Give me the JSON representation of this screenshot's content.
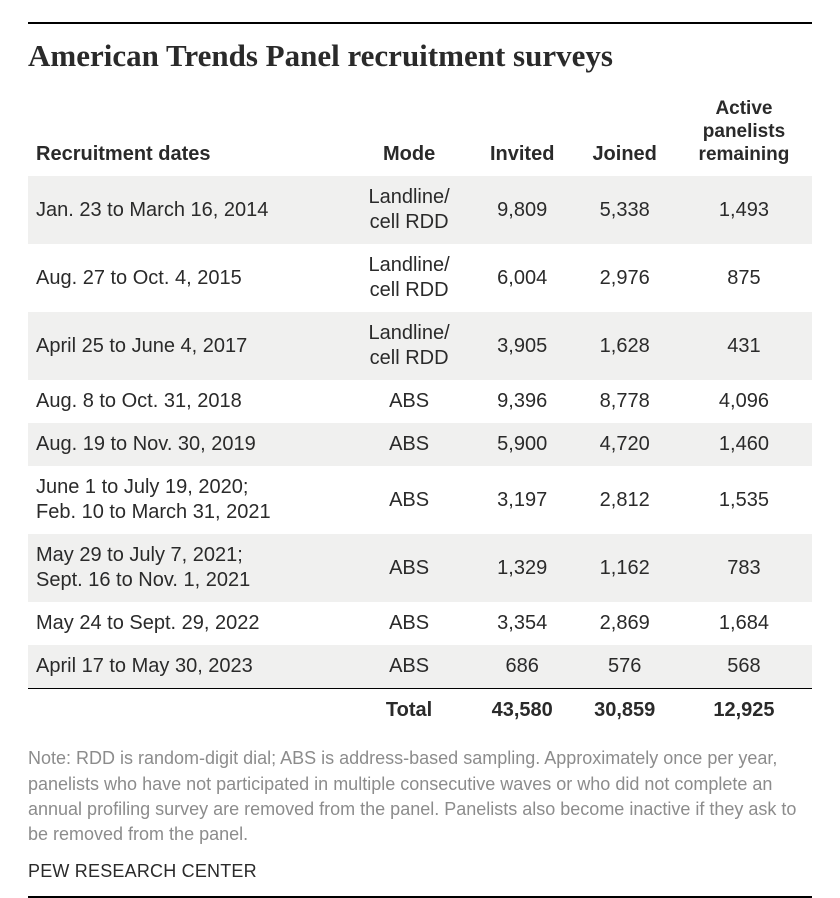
{
  "title": "American Trends Panel recruitment surveys",
  "table": {
    "columns": {
      "dates": "Recruitment dates",
      "mode": "Mode",
      "invited": "Invited",
      "joined": "Joined",
      "active_l1": "Active",
      "active_l2": "panelists",
      "active_l3": "remaining"
    },
    "col_classes": [
      "dates",
      "mode",
      "invited",
      "joined",
      "active"
    ],
    "shade_color": "#f0f0ef",
    "header_align": {
      "dates": "left",
      "mode": "center",
      "invited": "center",
      "joined": "center",
      "active": "center"
    },
    "cell_align": {
      "dates": "left",
      "mode": "center",
      "invited": "center",
      "joined": "center",
      "active": "center"
    },
    "fontsize_body": 20,
    "fontsize_header": 20,
    "rows": [
      {
        "dates": "Jan. 23 to March 16, 2014",
        "mode_l1": "Landline/",
        "mode_l2": "cell RDD",
        "invited": "9,809",
        "joined": "5,338",
        "active": "1,493",
        "shaded": true
      },
      {
        "dates": "Aug. 27 to Oct. 4, 2015",
        "mode_l1": "Landline/",
        "mode_l2": "cell RDD",
        "invited": "6,004",
        "joined": "2,976",
        "active": "875",
        "shaded": false
      },
      {
        "dates": "April 25 to June 4, 2017",
        "mode_l1": "Landline/",
        "mode_l2": "cell RDD",
        "invited": "3,905",
        "joined": "1,628",
        "active": "431",
        "shaded": true
      },
      {
        "dates": "Aug. 8 to Oct. 31, 2018",
        "mode_l1": "ABS",
        "mode_l2": "",
        "invited": "9,396",
        "joined": "8,778",
        "active": "4,096",
        "shaded": false
      },
      {
        "dates": "Aug. 19 to Nov. 30, 2019",
        "mode_l1": "ABS",
        "mode_l2": "",
        "invited": "5,900",
        "joined": "4,720",
        "active": "1,460",
        "shaded": true
      },
      {
        "dates_l1": "June 1 to July 19, 2020;",
        "dates_l2": "Feb. 10 to March 31, 2021",
        "mode_l1": "ABS",
        "mode_l2": "",
        "invited": "3,197",
        "joined": "2,812",
        "active": "1,535",
        "shaded": false
      },
      {
        "dates_l1": "May 29 to July 7, 2021;",
        "dates_l2": "Sept. 16 to Nov. 1, 2021",
        "mode_l1": "ABS",
        "mode_l2": "",
        "invited": "1,329",
        "joined": "1,162",
        "active": "783",
        "shaded": true
      },
      {
        "dates": "May 24 to Sept. 29, 2022",
        "mode_l1": "ABS",
        "mode_l2": "",
        "invited": "3,354",
        "joined": "2,869",
        "active": "1,684",
        "shaded": false
      },
      {
        "dates": "April 17 to May 30, 2023",
        "mode_l1": "ABS",
        "mode_l2": "",
        "invited": "686",
        "joined": "576",
        "active": "568",
        "shaded": true
      }
    ],
    "total": {
      "label": "Total",
      "invited": "43,580",
      "joined": "30,859",
      "active": "12,925"
    }
  },
  "note": "Note: RDD is random-digit dial; ABS is address-based sampling. Approximately once per year, panelists who have not participated in multiple consecutive waves or who did not complete an annual profiling survey are removed from the panel. Panelists also become inactive if they ask to be removed from the panel.",
  "source": "PEW RESEARCH CENTER",
  "colors": {
    "text": "#2a2a2a",
    "note_text": "#8c8c8c",
    "rule": "#000000",
    "background": "#ffffff"
  }
}
